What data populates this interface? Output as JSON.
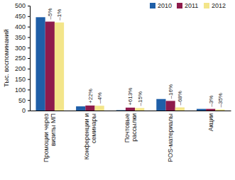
{
  "chart_data": {
    "type": "bar",
    "ylabel": "Тыс. воспоминаний",
    "categories": [
      "Промоции через визиты МП",
      "Конференции и семинары",
      "Почтовые рассылки",
      "POS-материалы",
      "Акции"
    ],
    "series": [
      {
        "name": "2010",
        "color": "#1f5fa8",
        "values": [
          445,
          20,
          2,
          55,
          8
        ]
      },
      {
        "name": "2011",
        "color": "#8e1b4c",
        "values": [
          424,
          24,
          14,
          46,
          8
        ]
      },
      {
        "name": "2012",
        "color": "#f3e58a",
        "values": [
          420,
          23,
          12,
          15,
          5
        ]
      }
    ],
    "ylim": [
      0,
      500
    ],
    "yticks": [
      0,
      50,
      100,
      150,
      200,
      250,
      300,
      350,
      400,
      450,
      500
    ],
    "grid": false,
    "legend": "top-right",
    "annotations": [
      {
        "text": "–5%",
        "series": "2011",
        "category": "Промоции через визиты МП"
      },
      {
        "text": "+22%",
        "series": "2011",
        "category": "Конференции и семинары"
      },
      {
        "text": "+613%",
        "series": "2011",
        "category": "Почтовые рассылки"
      },
      {
        "text": "–16%",
        "series": "2011",
        "category": "POS-материалы"
      },
      {
        "text": "–3%",
        "series": "2011",
        "category": "Акции"
      },
      {
        "text": "–1%",
        "series": "2012",
        "category": "Промоции через визиты МП"
      },
      {
        "text": "–4%",
        "series": "2012",
        "category": "Конференции и семинары"
      },
      {
        "text": "–15%",
        "series": "2012",
        "category": "Почтовые рассылки"
      },
      {
        "text": "–68%",
        "series": "2012",
        "category": "POS-материалы"
      },
      {
        "text": "–35%",
        "series": "2012",
        "category": "Акции"
      }
    ]
  }
}
